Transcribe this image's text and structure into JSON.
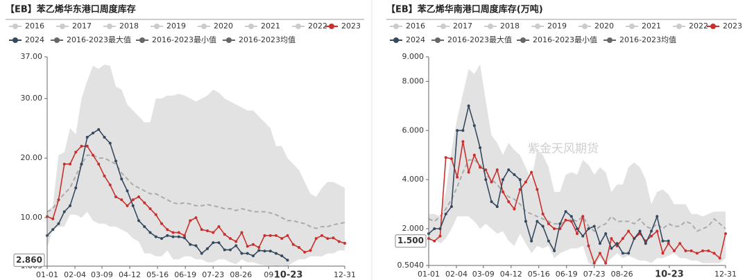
{
  "chart_data": [
    {
      "type": "line",
      "title": "【EB】苯乙烯华东港口周度库存",
      "watermark": "紫金天风期货",
      "hidden_series": [
        "2016",
        "2017",
        "2018",
        "2019",
        "2020",
        "2021",
        "2022"
      ],
      "hidden_color": "#cccccc",
      "x": [
        0,
        7,
        14,
        21,
        28,
        35,
        42,
        49,
        56,
        63,
        70,
        77,
        84,
        91,
        98,
        105,
        112,
        119,
        126,
        133,
        140,
        147,
        154,
        161,
        168,
        175,
        182,
        189,
        196,
        203,
        210,
        217,
        224,
        231,
        238,
        245,
        252,
        259,
        266,
        273,
        280,
        287,
        294,
        301,
        308,
        315,
        322,
        329,
        336,
        343,
        350,
        357,
        364
      ],
      "xlim": [
        0,
        364
      ],
      "xticks": [
        {
          "value": 0,
          "label": "01-01"
        },
        {
          "value": 34,
          "label": "02-04"
        },
        {
          "value": 67,
          "label": "03-09"
        },
        {
          "value": 101,
          "label": "04-12"
        },
        {
          "value": 135,
          "label": "05-16"
        },
        {
          "value": 169,
          "label": "06-19"
        },
        {
          "value": 203,
          "label": "07-23"
        },
        {
          "value": 237,
          "label": "08-26"
        },
        {
          "value": 271,
          "label": "09"
        },
        {
          "value": 295,
          "label": "10-23",
          "highlight": true
        },
        {
          "value": 364,
          "label": "12-31"
        }
      ],
      "ylim": [
        1.863,
        37
      ],
      "yticks": [
        {
          "value": 37,
          "label": "37.00"
        },
        {
          "value": 30,
          "label": "30.00"
        },
        {
          "value": 20,
          "label": "20.00"
        },
        {
          "value": 10,
          "label": "10.00"
        },
        {
          "value": 1.863,
          "label": "1.863"
        }
      ],
      "current_value": {
        "value": 2.86,
        "label": "2.860"
      },
      "series": [
        {
          "name": "2023",
          "color": "#c8302e",
          "style": "line",
          "markers": true,
          "values": [
            10.2,
            9.8,
            13,
            19,
            19,
            21,
            22,
            22,
            20.5,
            19,
            17,
            15.5,
            13.5,
            13,
            12,
            13,
            13.5,
            12.5,
            11.5,
            10.5,
            9,
            8,
            7.5,
            7.5,
            7,
            9.5,
            10,
            8,
            7.8,
            7.5,
            8.5,
            7.2,
            6.5,
            6,
            7.5,
            5.2,
            5.5,
            5,
            7,
            7,
            7,
            6.5,
            7,
            5.5,
            5,
            4.2,
            4.5,
            6.5,
            7,
            6.5,
            6.6,
            6,
            5.7
          ]
        },
        {
          "name": "2024",
          "color": "#34495e",
          "style": "line",
          "markers": true,
          "values": [
            7,
            8,
            9,
            11,
            12,
            15,
            19,
            23.5,
            24.2,
            24.8,
            23.5,
            22.5,
            19.5,
            16.5,
            14.5,
            12,
            9.5,
            8.5,
            7.5,
            6.8,
            6.5,
            7,
            6.8,
            6.8,
            6.6,
            5.5,
            5.3,
            4,
            4.8,
            5.8,
            5.8,
            4.6,
            4.6,
            5.3,
            4,
            4,
            3.6,
            4.5,
            4.4,
            4.4,
            4,
            3.6,
            2.86,
            null,
            null,
            null,
            null,
            null,
            null,
            null,
            null,
            null,
            null
          ]
        },
        {
          "name": "2016-2023最大值",
          "color": "#666666",
          "fill": "#e2e2e2",
          "style": "area",
          "values": [
            11,
            12,
            20.5,
            21,
            25,
            24,
            30,
            33,
            35.5,
            35,
            35.7,
            35.5,
            32,
            31.5,
            29,
            28,
            27,
            26,
            26,
            30,
            30,
            30.5,
            30.5,
            30.8,
            30.5,
            30,
            29.5,
            30,
            30.5,
            31.5,
            31,
            30,
            29.5,
            29,
            28.5,
            28,
            28,
            27,
            26,
            25,
            22,
            22,
            20,
            19,
            18,
            16,
            14,
            13.5,
            15,
            16,
            16,
            15.5,
            15
          ]
        },
        {
          "name": "2016-2023最小值",
          "color": "#666666",
          "fill": "#ffffff",
          "style": "area",
          "values": [
            5,
            8,
            8.5,
            8.5,
            10.5,
            10.5,
            10,
            11,
            9.5,
            9,
            9,
            8.5,
            8.5,
            8,
            7.5,
            6.5,
            6,
            4,
            4,
            3.5,
            3.5,
            4.5,
            3,
            3,
            3.5,
            3.5,
            3,
            3,
            2.5,
            2.5,
            3,
            3,
            2.5,
            2.2,
            3,
            2.5,
            2.5,
            2.2,
            2,
            2,
            1.9,
            2,
            1.863,
            2.5,
            3,
            3,
            3.5,
            3.5,
            3.5,
            4,
            4,
            4.5,
            4.5
          ]
        },
        {
          "name": "2016-2023均值",
          "color": "#666666",
          "line_color": "#aaaaaa",
          "style": "dashed",
          "values": [
            11,
            11.5,
            13,
            14,
            15,
            17,
            19,
            20.5,
            20.5,
            20,
            20,
            19.5,
            19,
            17.5,
            16.5,
            15.5,
            15,
            14.5,
            14,
            14,
            13.5,
            13,
            12.5,
            12.3,
            12.5,
            12.3,
            12,
            12,
            12.2,
            12,
            11.8,
            11.5,
            11.5,
            11.2,
            11.5,
            11.3,
            11,
            11,
            11,
            10.8,
            10.5,
            10,
            9.5,
            9.5,
            9.2,
            9,
            8.5,
            8.2,
            8.5,
            8.5,
            8.8,
            9,
            9.2
          ]
        }
      ]
    },
    {
      "type": "line",
      "title": "【EB】苯乙烯华南港口周度库存(万吨)",
      "watermark": "紫金天风期货",
      "hidden_series": [
        "2016",
        "2017",
        "2018",
        "2019",
        "2020",
        "2021",
        "2022"
      ],
      "hidden_color": "#cccccc",
      "x": [
        0,
        7,
        14,
        21,
        28,
        35,
        42,
        49,
        56,
        63,
        70,
        77,
        84,
        91,
        98,
        105,
        112,
        119,
        126,
        133,
        140,
        147,
        154,
        161,
        168,
        175,
        182,
        189,
        196,
        203,
        210,
        217,
        224,
        231,
        238,
        245,
        252,
        259,
        266,
        273,
        280,
        287,
        294,
        301,
        308,
        315,
        322,
        329,
        336,
        343,
        350,
        357,
        364
      ],
      "xlim": [
        0,
        364
      ],
      "xticks": [
        {
          "value": 0,
          "label": "01-01"
        },
        {
          "value": 34,
          "label": "02-04"
        },
        {
          "value": 67,
          "label": "03-09"
        },
        {
          "value": 101,
          "label": "04-12"
        },
        {
          "value": 135,
          "label": "05-16"
        },
        {
          "value": 169,
          "label": "06-19"
        },
        {
          "value": 203,
          "label": "07-23"
        },
        {
          "value": 237,
          "label": "08-26"
        },
        {
          "value": 295,
          "label": "10-23",
          "highlight": true
        },
        {
          "value": 364,
          "label": "12-31"
        }
      ],
      "ylim": [
        0.504,
        9
      ],
      "yticks": [
        {
          "value": 9,
          "label": "9.000"
        },
        {
          "value": 8,
          "label": "8.000"
        },
        {
          "value": 6,
          "label": "6.000"
        },
        {
          "value": 4,
          "label": "4.000"
        },
        {
          "value": 2,
          "label": "2.000"
        },
        {
          "value": 0.504,
          "label": "0.5040"
        }
      ],
      "current_value": {
        "value": 1.5,
        "label": "1.500"
      },
      "series": [
        {
          "name": "2023",
          "color": "#c8302e",
          "style": "line",
          "markers": true,
          "values": [
            1.6,
            1.5,
            1.7,
            4.9,
            4.85,
            4.1,
            5.55,
            4.3,
            5.0,
            4.5,
            4.4,
            3.9,
            4.4,
            3.5,
            3.1,
            2.8,
            3.6,
            3.9,
            4.3,
            3.6,
            2.6,
            2.2,
            2.0,
            2.0,
            2.35,
            2.3,
            1.8,
            2.5,
            1.3,
            0.6,
            1.0,
            0.6,
            1.6,
            1.3,
            1.6,
            1.9,
            1.6,
            1.8,
            1.5,
            1.7,
            1.9,
            1.0,
            1.4,
            1.1,
            1.4,
            1.1,
            1.1,
            1.0,
            1.1,
            1.1,
            1.0,
            0.8,
            1.8
          ]
        },
        {
          "name": "2024",
          "color": "#34495e",
          "style": "line",
          "markers": true,
          "values": [
            1.8,
            2.0,
            2.0,
            2.6,
            2.9,
            6.0,
            6.0,
            7.0,
            6.2,
            5.3,
            4.0,
            3.1,
            2.9,
            4.0,
            4.4,
            4.2,
            4.0,
            2.3,
            1.5,
            2.3,
            2.1,
            1.5,
            1.1,
            2.2,
            2.7,
            2.5,
            2.0,
            1.7,
            2.0,
            2.1,
            1.4,
            1.8,
            1.2,
            1.4,
            1.0,
            1.0,
            1.6,
            1.9,
            1.4,
            1.9,
            2.5,
            1.5,
            1.5,
            null,
            null,
            null,
            null,
            null,
            null,
            null,
            null,
            null,
            null
          ]
        },
        {
          "name": "2016-2023最大值",
          "color": "#666666",
          "fill": "#e2e2e2",
          "style": "area",
          "values": [
            2.6,
            2.6,
            2.5,
            3.5,
            5.2,
            6.5,
            7.5,
            8.5,
            8.3,
            8.7,
            7.2,
            5.8,
            5.5,
            5.0,
            5.5,
            5.2,
            5.0,
            4.5,
            4.0,
            5.2,
            5.0,
            4.5,
            3.5,
            3.5,
            4.2,
            4.3,
            4.2,
            4.8,
            4.6,
            4.2,
            4.5,
            4.3,
            3.5,
            3.8,
            3.8,
            4.5,
            4.7,
            4.5,
            4.0,
            3.0,
            3.5,
            3.6,
            3.4,
            3.0,
            3.0,
            3.0,
            2.6,
            2.6,
            2.5,
            2.6,
            2.7,
            2.7,
            2.7
          ]
        },
        {
          "name": "2016-2023最小值",
          "color": "#666666",
          "fill": "#ffffff",
          "style": "area",
          "values": [
            1.5,
            1.6,
            1.4,
            1.6,
            2.0,
            2.5,
            2.5,
            2.5,
            2.3,
            2.0,
            2.2,
            2.0,
            1.8,
            1.9,
            1.5,
            1.3,
            1.8,
            1.4,
            1.0,
            1.3,
            1.2,
            1.3,
            0.8,
            1.0,
            1.1,
            1.2,
            1.2,
            1.3,
            0.6,
            0.504,
            0.8,
            0.6,
            0.8,
            1.0,
            0.8,
            0.9,
            0.8,
            0.7,
            0.7,
            0.6,
            0.8,
            0.8,
            0.9,
            1.0,
            0.8,
            0.8,
            0.7,
            0.7,
            0.6,
            0.6,
            0.6,
            0.6,
            0.8
          ]
        },
        {
          "name": "2016-2023均值",
          "color": "#666666",
          "line_color": "#aaaaaa",
          "style": "dashed",
          "values": [
            2.4,
            2.3,
            2.5,
            2.8,
            3.2,
            3.7,
            4.3,
            4.8,
            4.8,
            4.6,
            4.2,
            4.0,
            3.8,
            3.5,
            3.3,
            3.2,
            3.0,
            2.7,
            2.6,
            2.5,
            2.4,
            2.3,
            2.2,
            2.2,
            2.3,
            2.4,
            2.3,
            2.5,
            2.1,
            1.9,
            2.1,
            2.2,
            2.5,
            2.3,
            2.3,
            2.3,
            2.2,
            2.4,
            2.1,
            2.0,
            2.2,
            2.0,
            2.2,
            2.1,
            2.1,
            2.3,
            2.2,
            1.9,
            2.0,
            2.1,
            2.4,
            2.2,
            2.0
          ]
        }
      ]
    }
  ]
}
